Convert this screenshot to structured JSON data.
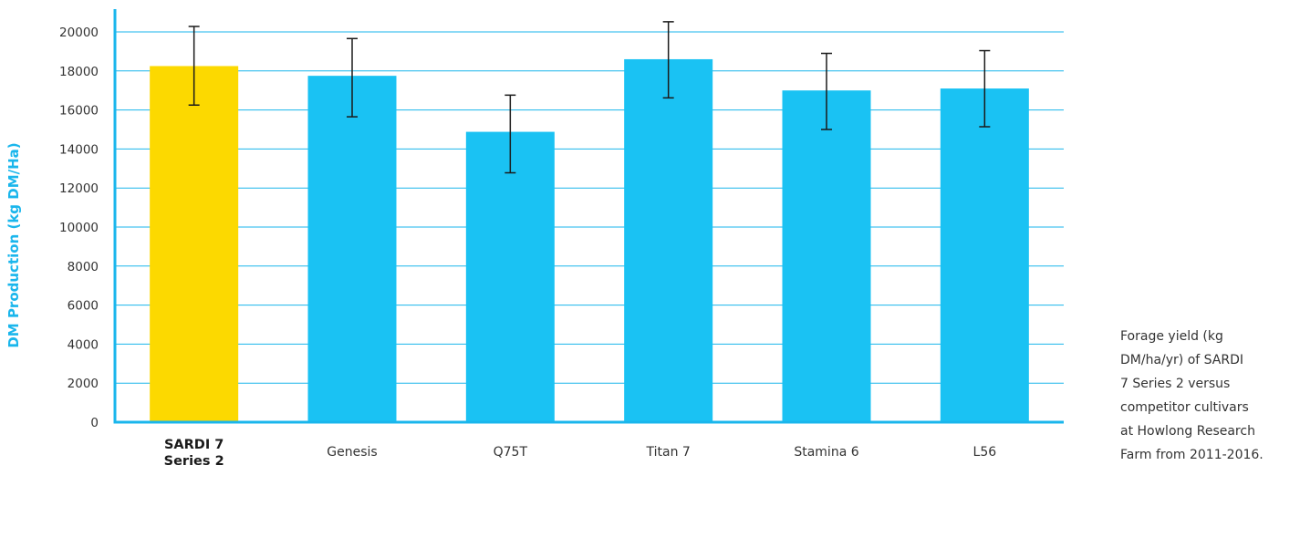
{
  "chart_data": {
    "type": "bar",
    "categories": [
      [
        "SARDI 7",
        "Series 2"
      ],
      [
        "Genesis"
      ],
      [
        "Q75T"
      ],
      [
        "Titan 7"
      ],
      [
        "Stamina 6"
      ],
      [
        "L56"
      ]
    ],
    "values": [
      18250,
      17750,
      14880,
      18600,
      17000,
      17100
    ],
    "error_low": [
      16250,
      15650,
      12780,
      16620,
      15000,
      15140
    ],
    "error_high": [
      20280,
      19660,
      16760,
      20520,
      18900,
      19040
    ],
    "highlight_index": 0,
    "title": "",
    "xlabel": "",
    "ylabel": "DM Production (kg DM/Ha)",
    "ylim": [
      0,
      20000
    ],
    "yticks": [
      0,
      2000,
      4000,
      6000,
      8000,
      10000,
      12000,
      14000,
      16000,
      18000,
      20000
    ],
    "grid": true,
    "colors": {
      "highlight": "#fcd900",
      "bar": "#1ac2f3",
      "grid": "#1ab6ec",
      "axis": "#1ab6ec",
      "error_bar": "#1a1a1a",
      "ylabel": "#1ab6ec"
    }
  },
  "caption": {
    "lines": [
      "Forage yield (kg",
      "DM/ha/yr) of SARDI",
      "7 Series 2 versus",
      "competitor cultivars",
      "at Howlong Research",
      "Farm from 2011-2016."
    ]
  }
}
